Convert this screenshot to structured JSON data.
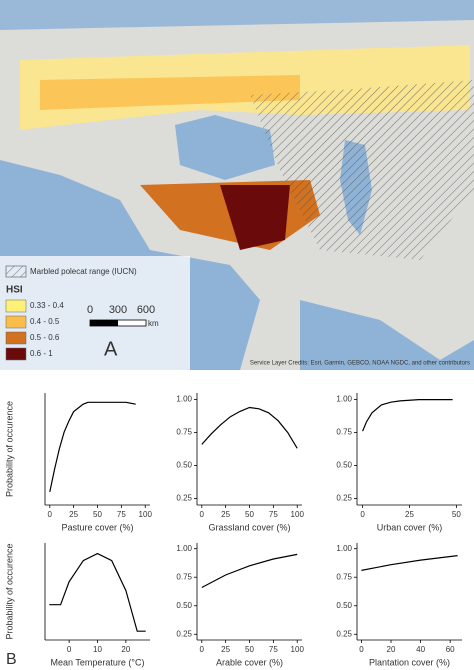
{
  "map": {
    "panel_label": "A",
    "range_legend": "Marbled polecat range (IUCN)",
    "hsi_title": "HSI",
    "hsi_classes": [
      {
        "label": "0.33 - 0.4",
        "color": "#fff176"
      },
      {
        "label": "0.4 - 0.5",
        "color": "#fbbd49"
      },
      {
        "label": "0.5 - 0.6",
        "color": "#d2711f"
      },
      {
        "label": "0.6 - 1",
        "color": "#6b0a0a"
      }
    ],
    "scale_labels": [
      "0",
      "300",
      "600"
    ],
    "scale_unit": "km",
    "credits": "Service Layer Credits: Esri, Garmin, GEBCO, NOAA NGDC, and other contributors"
  },
  "panel_label_b": "B",
  "chart_data": [
    {
      "type": "line",
      "xlabel": "Pasture cover (%)",
      "ylabel": "Probability of occurence",
      "x": [
        0,
        5,
        10,
        15,
        20,
        25,
        30,
        35,
        40,
        50,
        60,
        70,
        80,
        90
      ],
      "values": [
        0.52,
        0.64,
        0.75,
        0.84,
        0.9,
        0.95,
        0.97,
        0.99,
        1.0,
        1.0,
        1.0,
        1.0,
        1.0,
        0.99
      ],
      "xlim": [
        -5,
        105
      ],
      "xticks": [
        0,
        25,
        50,
        75,
        100
      ],
      "ylim": [
        0.45,
        1.05
      ],
      "color": "#000000"
    },
    {
      "type": "line",
      "xlabel": "Grassland cover (%)",
      "x": [
        0,
        10,
        20,
        30,
        40,
        50,
        60,
        70,
        80,
        90,
        100
      ],
      "values": [
        0.66,
        0.74,
        0.81,
        0.87,
        0.91,
        0.94,
        0.93,
        0.9,
        0.84,
        0.75,
        0.63
      ],
      "xlim": [
        -5,
        105
      ],
      "xticks": [
        0,
        25,
        50,
        75,
        100
      ],
      "ylim": [
        0.2,
        1.05
      ],
      "yticks": [
        0.25,
        0.5,
        0.75,
        1.0
      ],
      "color": "#000000"
    },
    {
      "type": "line",
      "xlabel": "Urban cover (%)",
      "x": [
        0,
        2,
        5,
        10,
        15,
        20,
        30,
        40,
        48
      ],
      "values": [
        0.76,
        0.83,
        0.9,
        0.96,
        0.98,
        0.99,
        1.0,
        1.0,
        1.0
      ],
      "xlim": [
        -3,
        53
      ],
      "xticks": [
        0,
        25,
        50
      ],
      "ylim": [
        0.2,
        1.05
      ],
      "yticks": [
        0.25,
        0.5,
        0.75,
        1.0
      ],
      "color": "#000000"
    },
    {
      "type": "line",
      "xlabel": "Mean Temperature (°C)",
      "ylabel": "Probability of occurence",
      "x": [
        -7,
        -3,
        0,
        5,
        10,
        15,
        20,
        24,
        27
      ],
      "values": [
        0.55,
        0.55,
        0.68,
        0.8,
        0.84,
        0.8,
        0.63,
        0.4,
        0.4
      ],
      "xlim": [
        -8.5,
        28.5
      ],
      "xticks": [
        0,
        10,
        20
      ],
      "ylim": [
        0.35,
        0.9
      ],
      "color": "#000000"
    },
    {
      "type": "line",
      "xlabel": "Arable cover (%)",
      "x": [
        0,
        25,
        50,
        75,
        100
      ],
      "values": [
        0.66,
        0.77,
        0.85,
        0.91,
        0.95
      ],
      "xlim": [
        -5,
        105
      ],
      "xticks": [
        0,
        25,
        50,
        75,
        100
      ],
      "ylim": [
        0.2,
        1.05
      ],
      "yticks": [
        0.25,
        0.5,
        0.75,
        1.0
      ],
      "color": "#000000"
    },
    {
      "type": "line",
      "xlabel": "Plantation cover (%)",
      "x": [
        0,
        20,
        40,
        65
      ],
      "values": [
        0.81,
        0.86,
        0.9,
        0.94
      ],
      "xlim": [
        -3,
        68
      ],
      "xticks": [
        0,
        20,
        40,
        60
      ],
      "ylim": [
        0.2,
        1.05
      ],
      "yticks": [
        0.25,
        0.5,
        0.75,
        1.0
      ],
      "color": "#000000"
    }
  ]
}
